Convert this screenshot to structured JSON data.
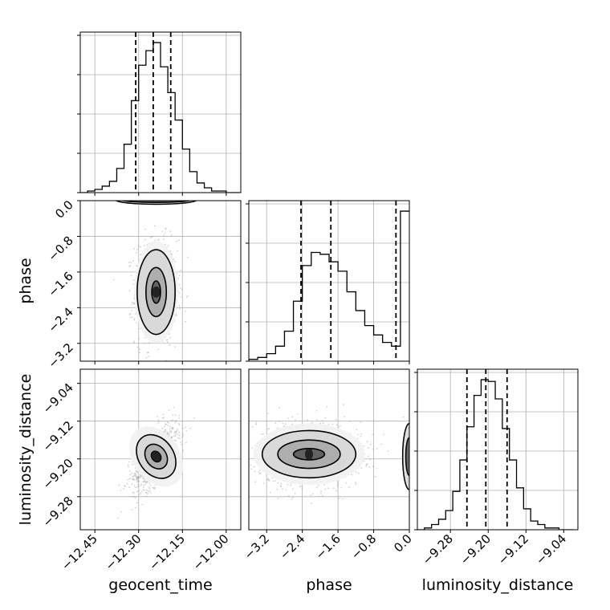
{
  "chart_data": {
    "type": "corner",
    "grid": true,
    "parameters": [
      "geocent_time",
      "phase",
      "luminosity_distance"
    ],
    "diagonal": [
      {
        "name": "geocent_time-hist",
        "type": "histogram",
        "xlim": [
          -12.5,
          -11.95
        ],
        "bins": [
          -12.5,
          -12.475,
          -12.45,
          -12.425,
          -12.4,
          -12.375,
          -12.35,
          -12.325,
          -12.3,
          -12.275,
          -12.25,
          -12.225,
          -12.2,
          -12.175,
          -12.15,
          -12.125,
          -12.1,
          -12.075,
          -12.05,
          -12.025,
          -12.0,
          -11.975,
          -11.95
        ],
        "counts": [
          0,
          0.01,
          0.02,
          0.04,
          0.07,
          0.15,
          0.3,
          0.57,
          0.79,
          0.88,
          0.93,
          0.78,
          0.62,
          0.45,
          0.27,
          0.13,
          0.06,
          0.03,
          0.01,
          0.01,
          0,
          0
        ],
        "quantiles": [
          -12.31,
          -12.25,
          -12.19
        ]
      },
      {
        "name": "phase-hist",
        "type": "histogram",
        "xlim": [
          -3.6,
          0.0
        ],
        "bins": [
          -3.6,
          -3.4,
          -3.2,
          -3.0,
          -2.8,
          -2.6,
          -2.4,
          -2.2,
          -2.0,
          -1.8,
          -1.6,
          -1.4,
          -1.2,
          -1.0,
          -0.8,
          -0.6,
          -0.4,
          -0.2,
          0.0
        ],
        "counts": [
          0.01,
          0.02,
          0.04,
          0.08,
          0.16,
          0.32,
          0.51,
          0.58,
          0.57,
          0.53,
          0.48,
          0.37,
          0.27,
          0.19,
          0.14,
          0.1,
          0.08,
          0.8
        ],
        "quantiles": [
          -2.43,
          -1.76,
          -0.3
        ]
      },
      {
        "name": "luminosity_distance-hist",
        "type": "histogram",
        "xlim": [
          -9.35,
          -9.01
        ],
        "bins": [
          -9.35,
          -9.335,
          -9.32,
          -9.305,
          -9.29,
          -9.275,
          -9.26,
          -9.245,
          -9.23,
          -9.215,
          -9.2,
          -9.185,
          -9.17,
          -9.155,
          -9.14,
          -9.125,
          -9.11,
          -9.095,
          -9.08,
          -9.065,
          -9.05,
          -9.035,
          -9.02
        ],
        "counts": [
          0,
          0.01,
          0.03,
          0.06,
          0.11,
          0.22,
          0.4,
          0.59,
          0.77,
          0.86,
          0.85,
          0.75,
          0.58,
          0.4,
          0.24,
          0.12,
          0.05,
          0.03,
          0.01,
          0.01,
          0,
          0
        ],
        "quantiles": [
          -9.245,
          -9.205,
          -9.16
        ]
      }
    ],
    "pairs": [
      {
        "name": "phase-vs-geocent_time",
        "x_param": "geocent_time",
        "y_param": "phase",
        "xlim": [
          -12.5,
          -11.95
        ],
        "ylim": [
          -3.6,
          0.0
        ],
        "center": [
          -12.24,
          -2.05
        ],
        "contour_radii": [
          [
            0.015,
            0.25
          ],
          [
            0.035,
            0.55
          ],
          [
            0.065,
            0.95
          ],
          [
            0.075,
            1.15
          ]
        ],
        "secondary_mode": {
          "center": [
            -12.24,
            0.02
          ],
          "radii": [
            [
              0.12,
              0.06
            ],
            [
              0.14,
              0.1
            ]
          ]
        },
        "scatter_spread": [
          0.08,
          1.3
        ]
      },
      {
        "name": "luminosity_distance-vs-geocent_time",
        "x_param": "geocent_time",
        "y_param": "luminosity_distance",
        "xlim": [
          -12.5,
          -11.95
        ],
        "ylim": [
          -9.35,
          -9.01
        ],
        "center": [
          -12.24,
          -9.195
        ],
        "correlation": 0.6,
        "contour_radii": [
          [
            0.015,
            0.012
          ],
          [
            0.035,
            0.028
          ],
          [
            0.06,
            0.05
          ],
          [
            0.08,
            0.07
          ]
        ],
        "scatter_spread": [
          0.09,
          0.08
        ]
      },
      {
        "name": "luminosity_distance-vs-phase",
        "x_param": "phase",
        "y_param": "luminosity_distance",
        "xlim": [
          -3.6,
          0.0
        ],
        "ylim": [
          -9.35,
          -9.01
        ],
        "center": [
          -2.25,
          -9.19
        ],
        "contour_radii": [
          [
            0.35,
            0.012
          ],
          [
            0.7,
            0.03
          ],
          [
            1.05,
            0.05
          ],
          [
            1.25,
            0.065
          ]
        ],
        "secondary_mode": {
          "center": [
            0.0,
            -9.195
          ],
          "radii": [
            [
              0.08,
              0.04
            ],
            [
              0.15,
              0.07
            ]
          ]
        },
        "scatter_spread": [
          1.3,
          0.08
        ]
      }
    ],
    "ticks": {
      "geocent_time": [
        "−12.45",
        "−12.30",
        "−12.15",
        "−12.00"
      ],
      "geocent_time_values": [
        -12.45,
        -12.3,
        -12.15,
        -12.0
      ],
      "phase": [
        "−3.2",
        "−2.4",
        "−1.6",
        "−0.8",
        "0.0"
      ],
      "phase_values": [
        -3.2,
        -2.4,
        -1.6,
        -0.8,
        0.0
      ],
      "luminosity_distance": [
        "−9.28",
        "−9.20",
        "−9.12",
        "−9.04"
      ],
      "luminosity_distance_values": [
        -9.28,
        -9.2,
        -9.12,
        -9.04
      ]
    },
    "labels": {
      "x": [
        "geocent_time",
        "phase",
        "luminosity_distance"
      ],
      "y": [
        "phase",
        "luminosity_distance"
      ]
    }
  }
}
